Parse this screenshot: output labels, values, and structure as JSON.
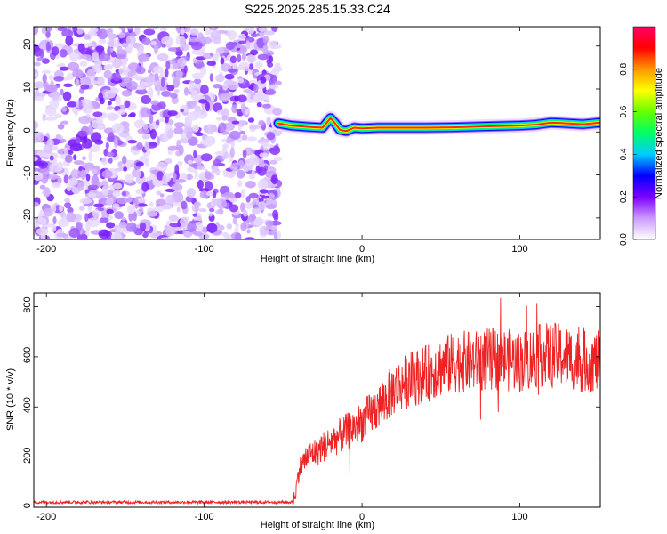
{
  "title": "S225.2025.285.15.33.C24",
  "chart_data": [
    {
      "type": "heatmap",
      "name": "spectrogram",
      "xlabel": "Height of straight line (km)",
      "ylabel": "Frequency (Hz)",
      "xlim": [
        -208,
        151
      ],
      "ylim": [
        -25,
        24.5
      ],
      "xticks": [
        -200,
        -100,
        0,
        100
      ],
      "yticks": [
        -20,
        -10,
        0,
        10,
        20
      ],
      "noise_region_x": [
        -208,
        -53
      ],
      "signal_track": {
        "x": [
          -53,
          -45,
          -35,
          -25,
          -20,
          -17,
          -14,
          -10,
          -5,
          0,
          10,
          20,
          40,
          60,
          80,
          100,
          110,
          120,
          130,
          140,
          151
        ],
        "freq": [
          2.0,
          1.5,
          1.2,
          1.0,
          3.2,
          2.0,
          0.5,
          0.2,
          1.0,
          0.8,
          1.0,
          1.0,
          1.0,
          1.1,
          1.3,
          1.5,
          1.7,
          2.2,
          2.0,
          1.8,
          2.2
        ]
      },
      "colorbar": {
        "label": "Normalized spectral amplitude",
        "range": [
          0,
          1
        ],
        "ticks": [
          "0.0",
          "0.2",
          "0.4",
          "0.6",
          "0.8"
        ],
        "colors": [
          "#ffffff",
          "#cc99ff",
          "#7b00ff",
          "#0000ff",
          "#00ccff",
          "#00ff66",
          "#66ff00",
          "#ffff00",
          "#ff9900",
          "#ff0000",
          "#ff0066"
        ]
      }
    },
    {
      "type": "line",
      "name": "snr",
      "xlabel": "Height of straight line (km)",
      "ylabel": "SNR (10 * v/v)",
      "xlim": [
        -208,
        151
      ],
      "ylim": [
        0,
        855
      ],
      "xticks": [
        -200,
        -100,
        0,
        100
      ],
      "yticks": [
        0,
        200,
        400,
        600,
        800
      ],
      "line_color": "#ee2222",
      "series": [
        {
          "name": "SNR",
          "x": [
            -208,
            -180,
            -150,
            -120,
            -90,
            -60,
            -44,
            -42,
            -40,
            -35,
            -30,
            -25,
            -20,
            -15,
            -10,
            -5,
            0,
            5,
            10,
            15,
            20,
            30,
            40,
            50,
            60,
            70,
            80,
            90,
            100,
            110,
            120,
            130,
            140,
            151
          ],
          "y": [
            20,
            20,
            20,
            20,
            20,
            20,
            20,
            60,
            150,
            200,
            220,
            240,
            260,
            280,
            300,
            320,
            340,
            370,
            400,
            430,
            470,
            510,
            530,
            560,
            580,
            580,
            590,
            590,
            580,
            600,
            610,
            600,
            580,
            580
          ]
        }
      ]
    }
  ]
}
